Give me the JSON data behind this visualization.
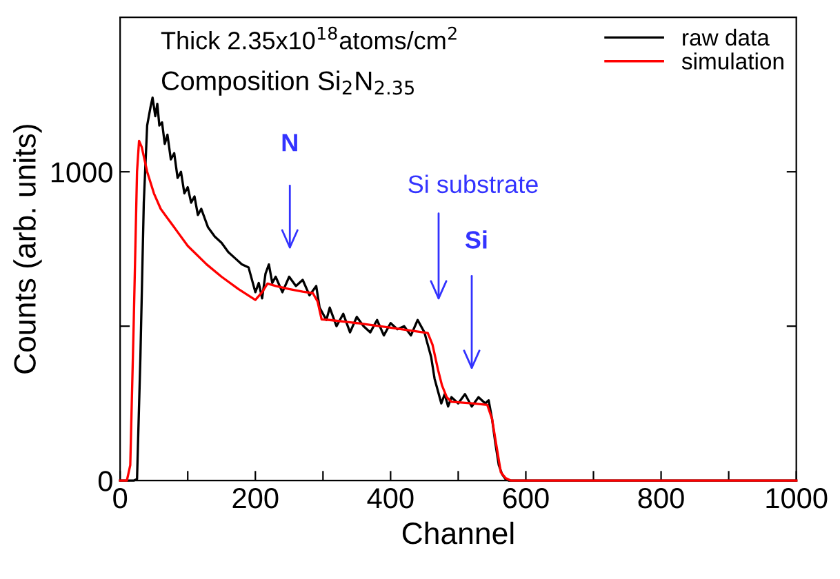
{
  "chart_data": {
    "type": "line",
    "xlabel": "Channel",
    "ylabel": "Counts (arb. units)",
    "xlim": [
      0,
      1000
    ],
    "ylim": [
      0,
      1500
    ],
    "xticks": [
      0,
      {
        "value": 100,
        "label": null
      },
      200,
      {
        "value": 300,
        "label": null
      },
      400,
      {
        "value": 500,
        "label": null
      },
      600,
      {
        "value": 700,
        "label": null
      },
      800,
      {
        "value": 900,
        "label": null
      },
      1000
    ],
    "yticks": [
      0,
      {
        "value": 500,
        "label": null
      },
      1000
    ],
    "grid": false,
    "legend": "top right",
    "marker": "none",
    "line_style": "solid",
    "series": [
      {
        "name": "raw data",
        "color": "#000000",
        "x": [
          0,
          20,
          25,
          30,
          35,
          40,
          45,
          48,
          52,
          55,
          58,
          62,
          66,
          70,
          75,
          80,
          85,
          90,
          95,
          100,
          105,
          110,
          115,
          120,
          130,
          140,
          150,
          160,
          170,
          180,
          190,
          200,
          205,
          210,
          215,
          220,
          225,
          230,
          240,
          250,
          260,
          270,
          280,
          290,
          295,
          300,
          305,
          310,
          320,
          330,
          340,
          350,
          360,
          370,
          380,
          390,
          400,
          410,
          420,
          430,
          440,
          450,
          455,
          460,
          465,
          470,
          475,
          480,
          485,
          490,
          500,
          510,
          520,
          530,
          540,
          545,
          550,
          555,
          560,
          565,
          570,
          575,
          580,
          600,
          700,
          800,
          900,
          1000
        ],
        "values": [
          0,
          0,
          5,
          400,
          900,
          1150,
          1210,
          1240,
          1180,
          1220,
          1150,
          1160,
          1090,
          1120,
          1040,
          1060,
          980,
          1000,
          930,
          950,
          900,
          920,
          860,
          880,
          820,
          790,
          770,
          740,
          720,
          700,
          690,
          610,
          640,
          590,
          670,
          700,
          640,
          660,
          610,
          660,
          630,
          650,
          600,
          630,
          560,
          540,
          520,
          560,
          500,
          540,
          480,
          530,
          500,
          480,
          520,
          470,
          510,
          490,
          500,
          470,
          520,
          480,
          440,
          400,
          330,
          290,
          250,
          280,
          240,
          270,
          250,
          280,
          240,
          270,
          250,
          260,
          200,
          120,
          50,
          20,
          5,
          0,
          0,
          0,
          0,
          0,
          0,
          0
        ]
      },
      {
        "name": "simulation",
        "color": "#ff0000",
        "x": [
          0,
          10,
          15,
          20,
          25,
          28,
          32,
          40,
          50,
          60,
          70,
          80,
          100,
          128,
          150,
          175,
          200,
          210,
          218,
          230,
          250,
          270,
          285,
          292,
          298,
          310,
          350,
          400,
          455,
          462,
          470,
          476,
          483,
          490,
          520,
          543,
          550,
          556,
          563,
          570,
          578,
          600,
          700,
          800,
          900,
          1000
        ],
        "values": [
          0,
          0,
          50,
          500,
          1000,
          1100,
          1080,
          1000,
          930,
          880,
          850,
          820,
          760,
          700,
          660,
          620,
          585,
          610,
          638,
          630,
          620,
          612,
          607,
          580,
          522,
          520,
          510,
          495,
          478,
          440,
          360,
          308,
          270,
          255,
          250,
          245,
          200,
          120,
          27,
          8,
          0,
          0,
          0,
          0,
          0,
          0
        ]
      }
    ],
    "annotations": [
      "Thick 2.35x10$^{18}$atoms/cm$^{2}$",
      "Composition Si$_{2}$N$_{2.35}$",
      "N",
      "Si substrate",
      "Si"
    ]
  }
}
